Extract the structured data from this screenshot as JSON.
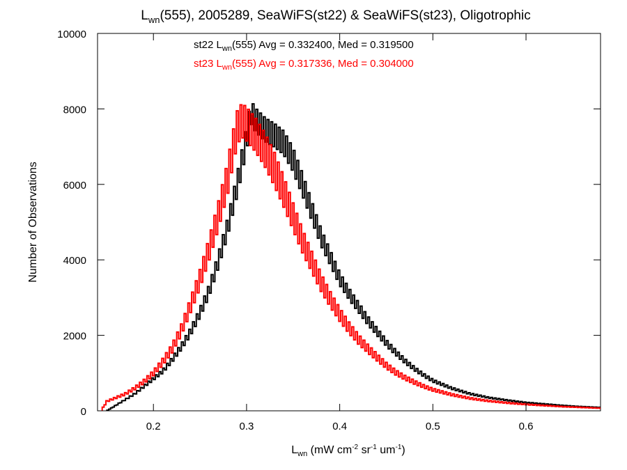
{
  "chart_data": {
    "type": "line",
    "title": {
      "main": "L",
      "main_sub": "wn",
      "rest": "(555), 2005289, SeaWiFS(st22) & SeaWiFS(st23), Oligotrophic"
    },
    "xlabel": {
      "main": "L",
      "sub": "wn",
      "p1": " (mW cm",
      "sup1": "-2",
      "p2": " sr",
      "sup2": "-1",
      "p3": " um",
      "sup3": "-1",
      "p4": ")"
    },
    "ylabel": "Number of Observations",
    "xlim": [
      0.14,
      0.68
    ],
    "ylim": [
      0,
      10000
    ],
    "x_ticks": [
      0.2,
      0.3,
      0.4,
      0.5,
      0.6
    ],
    "x_tick_labels": [
      "0.2",
      "0.3",
      "0.4",
      "0.5",
      "0.6"
    ],
    "y_ticks": [
      0,
      2000,
      4000,
      6000,
      8000,
      10000
    ],
    "y_tick_labels": [
      "0",
      "2000",
      "4000",
      "6000",
      "8000",
      "10000"
    ],
    "grid": false,
    "annotations": [
      {
        "color": "#000000",
        "prefix": "st22 L",
        "sub": "wn",
        "suffix": "(555) Avg = 0.332400, Med = 0.319500"
      },
      {
        "color": "#ff0000",
        "prefix": "st23 L",
        "sub": "wn",
        "suffix": "(555) Avg = 0.317336, Med = 0.304000"
      }
    ],
    "series": [
      {
        "color": "#000000",
        "step": "histogram",
        "points": [
          [
            0.15,
            0
          ],
          [
            0.16,
            150
          ],
          [
            0.17,
            300
          ],
          [
            0.18,
            450
          ],
          [
            0.19,
            650
          ],
          [
            0.2,
            850
          ],
          [
            0.21,
            1050
          ],
          [
            0.22,
            1350
          ],
          [
            0.23,
            1700
          ],
          [
            0.24,
            2100
          ],
          [
            0.25,
            2600
          ],
          [
            0.26,
            3200
          ],
          [
            0.27,
            4000
          ],
          [
            0.28,
            4900
          ],
          [
            0.29,
            6000
          ],
          [
            0.3,
            7200
          ],
          [
            0.305,
            7900
          ],
          [
            0.31,
            7700
          ],
          [
            0.32,
            7450
          ],
          [
            0.33,
            7300
          ],
          [
            0.34,
            7100
          ],
          [
            0.35,
            6650
          ],
          [
            0.36,
            6000
          ],
          [
            0.37,
            5300
          ],
          [
            0.38,
            4600
          ],
          [
            0.39,
            4050
          ],
          [
            0.4,
            3500
          ],
          [
            0.41,
            3100
          ],
          [
            0.42,
            2750
          ],
          [
            0.43,
            2400
          ],
          [
            0.44,
            2100
          ],
          [
            0.45,
            1800
          ],
          [
            0.46,
            1550
          ],
          [
            0.47,
            1320
          ],
          [
            0.48,
            1120
          ],
          [
            0.49,
            950
          ],
          [
            0.5,
            800
          ],
          [
            0.52,
            600
          ],
          [
            0.54,
            450
          ],
          [
            0.56,
            350
          ],
          [
            0.58,
            280
          ],
          [
            0.6,
            220
          ],
          [
            0.62,
            180
          ],
          [
            0.64,
            140
          ],
          [
            0.66,
            110
          ],
          [
            0.68,
            90
          ]
        ]
      },
      {
        "color": "#ff0000",
        "step": "histogram",
        "points": [
          [
            0.145,
            50
          ],
          [
            0.15,
            250
          ],
          [
            0.16,
            350
          ],
          [
            0.17,
            450
          ],
          [
            0.18,
            600
          ],
          [
            0.19,
            780
          ],
          [
            0.2,
            1000
          ],
          [
            0.21,
            1300
          ],
          [
            0.22,
            1650
          ],
          [
            0.23,
            2150
          ],
          [
            0.24,
            2800
          ],
          [
            0.25,
            3500
          ],
          [
            0.26,
            4300
          ],
          [
            0.27,
            5200
          ],
          [
            0.28,
            6200
          ],
          [
            0.285,
            6900
          ],
          [
            0.29,
            7500
          ],
          [
            0.295,
            7700
          ],
          [
            0.3,
            7600
          ],
          [
            0.31,
            7300
          ],
          [
            0.32,
            6900
          ],
          [
            0.33,
            6400
          ],
          [
            0.34,
            5800
          ],
          [
            0.35,
            5150
          ],
          [
            0.36,
            4500
          ],
          [
            0.37,
            3950
          ],
          [
            0.38,
            3400
          ],
          [
            0.39,
            2950
          ],
          [
            0.4,
            2550
          ],
          [
            0.41,
            2200
          ],
          [
            0.42,
            1900
          ],
          [
            0.43,
            1650
          ],
          [
            0.44,
            1420
          ],
          [
            0.45,
            1200
          ],
          [
            0.46,
            1020
          ],
          [
            0.47,
            880
          ],
          [
            0.48,
            760
          ],
          [
            0.49,
            650
          ],
          [
            0.5,
            560
          ],
          [
            0.52,
            430
          ],
          [
            0.54,
            330
          ],
          [
            0.56,
            260
          ],
          [
            0.58,
            210
          ],
          [
            0.6,
            170
          ],
          [
            0.62,
            140
          ],
          [
            0.64,
            110
          ],
          [
            0.66,
            90
          ],
          [
            0.68,
            70
          ]
        ]
      }
    ]
  }
}
